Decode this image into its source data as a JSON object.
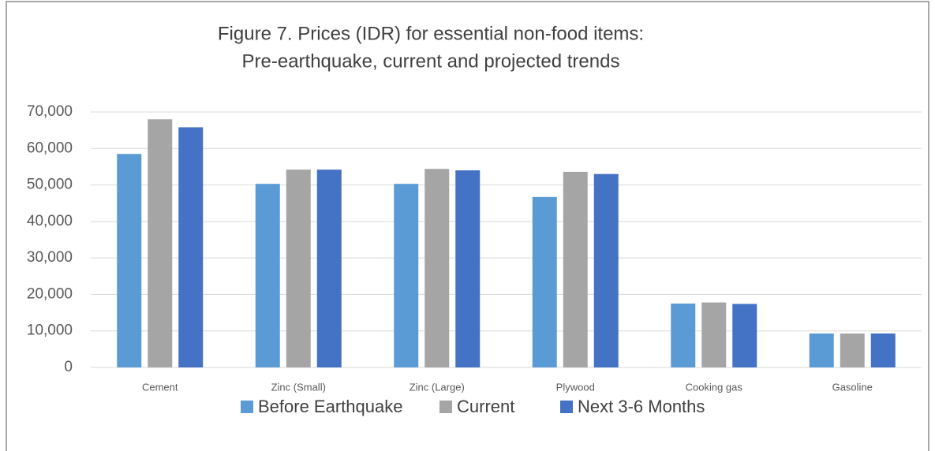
{
  "chart_data": {
    "type": "bar",
    "title": [
      "Figure 7. Prices (IDR) for  essential non-food items:",
      "Pre-earthquake, current and projected trends"
    ],
    "categories": [
      "Cement",
      "Zinc (Small)",
      "Zinc (Large)",
      "Plywood",
      "Cooking gas",
      "Gasoline"
    ],
    "series": [
      {
        "name": "Before Earthquake",
        "color": "#5b9bd5",
        "values": [
          58500,
          50300,
          50300,
          46700,
          17500,
          9300
        ]
      },
      {
        "name": "Current",
        "color": "#a5a5a5",
        "values": [
          68000,
          54200,
          54400,
          53600,
          17800,
          9300
        ]
      },
      {
        "name": "Next 3-6 Months",
        "color": "#4472c4",
        "values": [
          65800,
          54200,
          54000,
          53000,
          17400,
          9300
        ]
      }
    ],
    "ylim": [
      0,
      70000
    ],
    "yticks": [
      0,
      {
        "value": 10000,
        "label": "10,000"
      },
      {
        "value": 20000,
        "label": "20,000"
      },
      {
        "value": 30000,
        "label": "30,000"
      },
      {
        "value": 40000,
        "label": "40,000"
      },
      {
        "value": 50000,
        "label": "50,000"
      },
      {
        "value": 60000,
        "label": "60,000"
      },
      {
        "value": 70000,
        "label": "70,000"
      }
    ],
    "grid": true,
    "legend": "bottom"
  }
}
